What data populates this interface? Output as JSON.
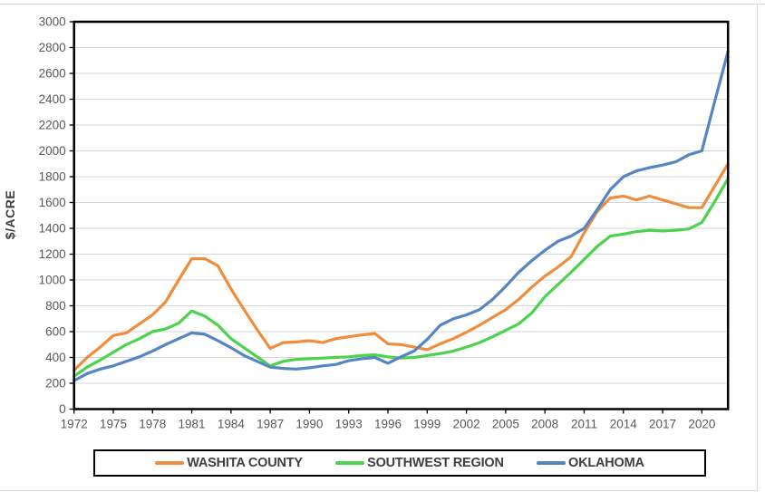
{
  "chart_data": {
    "type": "line",
    "title": "",
    "xlabel": "",
    "ylabel": "$/ACRE",
    "ylim": [
      0,
      3000
    ],
    "ytick_step": 200,
    "xticks": [
      1972,
      1975,
      1978,
      1981,
      1984,
      1987,
      1990,
      1993,
      1996,
      1999,
      2002,
      2005,
      2008,
      2011,
      2014,
      2017,
      2020
    ],
    "x": [
      1972,
      1973,
      1974,
      1975,
      1976,
      1977,
      1978,
      1979,
      1980,
      1981,
      1982,
      1983,
      1984,
      1985,
      1986,
      1987,
      1988,
      1989,
      1990,
      1991,
      1992,
      1993,
      1994,
      1995,
      1996,
      1997,
      1998,
      1999,
      2000,
      2001,
      2002,
      2003,
      2004,
      2005,
      2006,
      2007,
      2008,
      2009,
      2010,
      2011,
      2012,
      2013,
      2014,
      2015,
      2016,
      2017,
      2018,
      2019,
      2020,
      2021,
      2022
    ],
    "grid": "horizontal",
    "legend_position": "bottom",
    "series": [
      {
        "name": "WASHITA COUNTY",
        "color": "#EF8D3D",
        "values": [
          300,
          400,
          480,
          570,
          590,
          660,
          730,
          830,
          1000,
          1165,
          1165,
          1110,
          930,
          770,
          615,
          470,
          515,
          520,
          530,
          515,
          545,
          560,
          575,
          585,
          505,
          500,
          480,
          460,
          505,
          545,
          595,
          650,
          710,
          770,
          850,
          945,
          1030,
          1100,
          1180,
          1365,
          1530,
          1635,
          1650,
          1620,
          1650,
          1620,
          1590,
          1560,
          1560,
          1730,
          1900
        ]
      },
      {
        "name": "SOUTHWEST REGION",
        "color": "#4DD24D",
        "values": [
          255,
          325,
          380,
          440,
          500,
          545,
          600,
          620,
          665,
          760,
          720,
          650,
          545,
          475,
          405,
          335,
          370,
          385,
          390,
          395,
          400,
          405,
          415,
          420,
          405,
          395,
          400,
          415,
          430,
          450,
          480,
          515,
          560,
          610,
          660,
          745,
          870,
          965,
          1060,
          1160,
          1260,
          1340,
          1355,
          1375,
          1385,
          1380,
          1385,
          1395,
          1445,
          1610,
          1785
        ]
      },
      {
        "name": "OKLAHOMA",
        "color": "#5585C2",
        "values": [
          220,
          275,
          310,
          335,
          370,
          405,
          450,
          500,
          545,
          590,
          580,
          530,
          475,
          415,
          370,
          325,
          315,
          310,
          320,
          335,
          345,
          375,
          390,
          400,
          355,
          405,
          450,
          540,
          650,
          700,
          730,
          770,
          850,
          950,
          1060,
          1150,
          1230,
          1300,
          1340,
          1400,
          1545,
          1700,
          1800,
          1845,
          1870,
          1890,
          1915,
          1970,
          2000,
          2390,
          2770
        ]
      }
    ]
  },
  "style": {
    "grid_color": "#d6d6d6",
    "axis_color": "#000000",
    "tick_label_color": "#595959",
    "axis_title_color": "#404040"
  }
}
